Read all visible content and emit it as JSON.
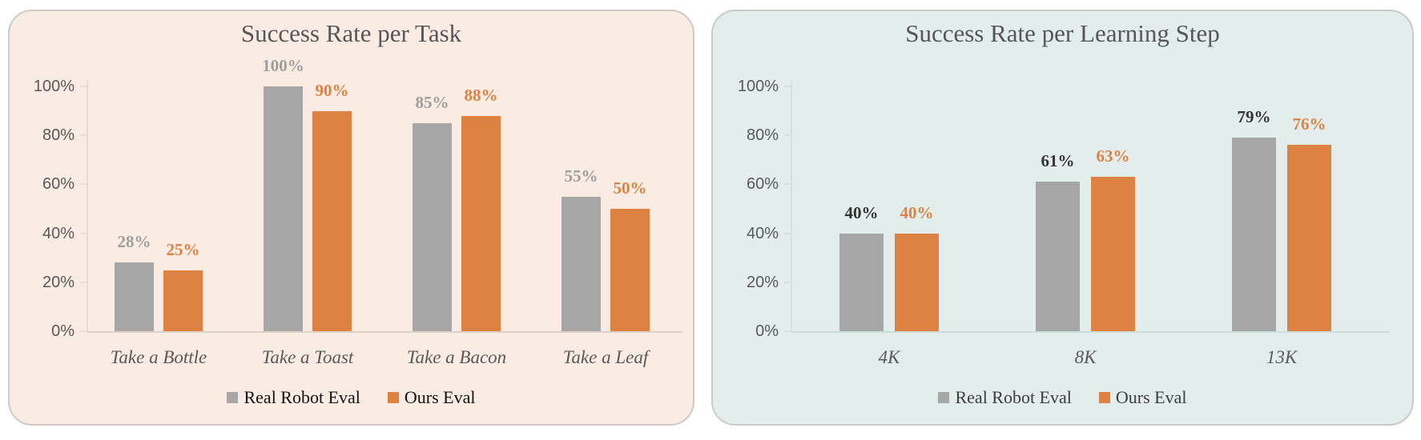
{
  "page": {
    "background": "#ffffff"
  },
  "chart_data": [
    {
      "type": "bar",
      "title": "Success Rate per Task",
      "title_color": "#575757",
      "card_bg": "#FAECE3",
      "card_border": "#CBCBC8",
      "axis_color": "#E8DCD3",
      "baseline_color": "#DCD1C9",
      "tick_label_color": "#595959",
      "category_label_color": "#595959",
      "legend_text_color": "#111111",
      "ylim": [
        0,
        100
      ],
      "y_ticks": [
        "0%",
        "20%",
        "40%",
        "60%",
        "80%",
        "100%"
      ],
      "grid": "off",
      "legend_position": "bottom",
      "categories": [
        "Take a Bottle",
        "Take a Toast",
        "Take a Bacon",
        "Take a Leaf"
      ],
      "series": [
        {
          "name": "Real Robot Eval",
          "color": "#A6A6A6",
          "label_color": "#9E9E9E",
          "values": [
            28,
            100,
            85,
            55
          ],
          "labels": [
            "28%",
            "100%",
            "85%",
            "55%"
          ]
        },
        {
          "name": "Ours Eval",
          "color": "#DE8244",
          "label_color": "#DE8244",
          "values": [
            25,
            90,
            88,
            50
          ],
          "labels": [
            "25%",
            "90%",
            "88%",
            "50%"
          ]
        }
      ]
    },
    {
      "type": "bar",
      "title": "Success Rate per Learning Step",
      "title_color": "#575757",
      "card_bg": "#E2EDEC",
      "card_border": "#CBCBC8",
      "axis_color": "#D2E0DE",
      "baseline_color": "#CEDCDA",
      "tick_label_color": "#595959",
      "category_label_color": "#595959",
      "legend_text_color": "#3D3D3D",
      "ylim": [
        0,
        100
      ],
      "y_ticks": [
        "0%",
        "20%",
        "40%",
        "60%",
        "80%",
        "100%"
      ],
      "grid": "off",
      "legend_position": "bottom",
      "categories": [
        "4K",
        "8K",
        "13K"
      ],
      "series": [
        {
          "name": "Real Robot Eval",
          "color": "#A6A6A6",
          "label_color": "#333333",
          "values": [
            40,
            61,
            79
          ],
          "labels": [
            "40%",
            "61%",
            "79%"
          ]
        },
        {
          "name": "Ours Eval",
          "color": "#DE8244",
          "label_color": "#DE8244",
          "values": [
            40,
            63,
            76
          ],
          "labels": [
            "40%",
            "63%",
            "76%"
          ]
        }
      ]
    }
  ]
}
